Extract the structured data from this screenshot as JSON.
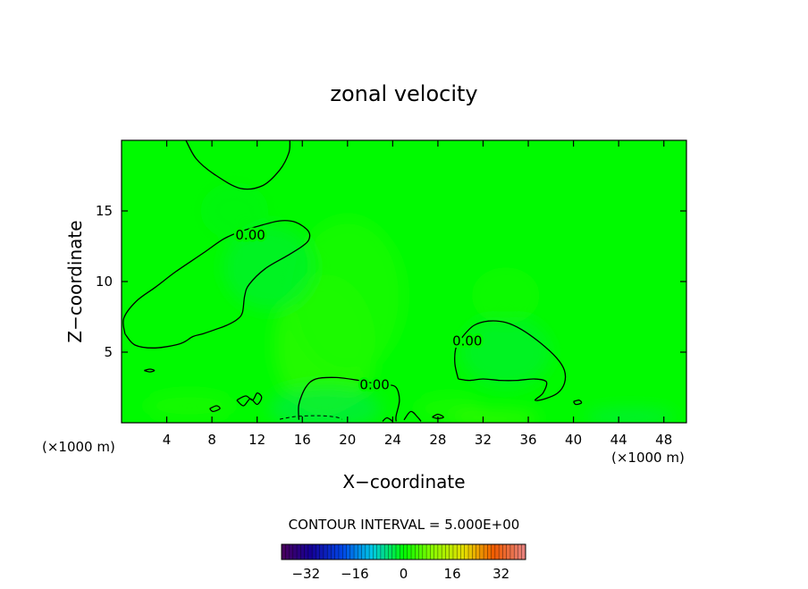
{
  "chart_data": {
    "type": "heatmap",
    "title": "zonal velocity",
    "xlabel": "X−coordinate",
    "ylabel": "Z−coordinate",
    "x_unit_left": "(×1000 m)",
    "x_unit_right": "(×1000 m)",
    "xlim": [
      0,
      50
    ],
    "ylim": [
      0,
      20
    ],
    "xticks": [
      4,
      8,
      12,
      16,
      20,
      24,
      28,
      32,
      36,
      40,
      44,
      48
    ],
    "yticks": [
      5,
      10,
      15
    ],
    "contour_interval_text": "CONTOUR INTERVAL = 5.000E+00",
    "contour_label": "0.00",
    "colorbar": {
      "range": [
        -40,
        40
      ],
      "ticks": [
        "−32",
        "−16",
        "0",
        "16",
        "32"
      ],
      "tick_values": [
        -32,
        -16,
        0,
        16,
        32
      ]
    },
    "background_value": 0,
    "zero_contours": [
      {
        "label_shown": false,
        "points": [
          [
            5.7,
            20
          ],
          [
            6.6,
            18.7
          ],
          [
            8.2,
            17.6
          ],
          [
            10.5,
            16.6
          ],
          [
            12.5,
            16.8
          ],
          [
            14.0,
            17.9
          ],
          [
            14.8,
            19.1
          ],
          [
            14.9,
            20
          ]
        ]
      },
      {
        "label_shown": true,
        "label_at": [
          11.4,
          13.3
        ],
        "points": [
          [
            0.3,
            6.3
          ],
          [
            1.2,
            5.5
          ],
          [
            3.0,
            5.3
          ],
          [
            5.2,
            5.6
          ],
          [
            6.3,
            6.1
          ],
          [
            7.2,
            6.3
          ],
          [
            8.3,
            6.6
          ],
          [
            9.3,
            6.9
          ],
          [
            10.2,
            7.3
          ],
          [
            10.7,
            7.8
          ],
          [
            10.9,
            9.0
          ],
          [
            11.3,
            9.8
          ],
          [
            12.7,
            10.9
          ],
          [
            14.6,
            11.8
          ],
          [
            16.0,
            12.5
          ],
          [
            16.6,
            13.0
          ],
          [
            16.5,
            13.6
          ],
          [
            15.4,
            14.2
          ],
          [
            14.0,
            14.3
          ],
          [
            12.0,
            13.9
          ],
          [
            10.4,
            13.5
          ],
          [
            9.0,
            13.0
          ],
          [
            7.2,
            12.0
          ],
          [
            4.8,
            10.7
          ],
          [
            3.0,
            9.6
          ],
          [
            1.3,
            8.6
          ],
          [
            0.2,
            7.4
          ],
          [
            0.3,
            6.3
          ]
        ]
      },
      {
        "label_shown": true,
        "label_at": [
          30.6,
          5.8
        ],
        "points": [
          [
            29.8,
            3.1
          ],
          [
            29.5,
            4.2
          ],
          [
            29.6,
            5.3
          ],
          [
            30.2,
            6.1
          ],
          [
            31.2,
            6.9
          ],
          [
            32.5,
            7.2
          ],
          [
            34.0,
            7.1
          ],
          [
            35.4,
            6.6
          ],
          [
            37.0,
            5.7
          ],
          [
            38.5,
            4.6
          ],
          [
            39.2,
            3.7
          ],
          [
            39.2,
            2.8
          ],
          [
            38.6,
            2.1
          ],
          [
            37.5,
            1.7
          ],
          [
            36.6,
            1.6
          ],
          [
            37.3,
            2.1
          ],
          [
            37.6,
            2.9
          ],
          [
            36.5,
            3.1
          ],
          [
            35.0,
            3.0
          ],
          [
            33.5,
            3.0
          ],
          [
            32.0,
            3.1
          ],
          [
            30.8,
            3.0
          ],
          [
            29.8,
            3.1
          ]
        ]
      },
      {
        "label_shown": true,
        "label_at": [
          22.4,
          2.7
        ],
        "points": [
          [
            15.7,
            0.2
          ],
          [
            15.7,
            1.3
          ],
          [
            16.3,
            2.5
          ],
          [
            17.2,
            3.1
          ],
          [
            19.0,
            3.2
          ],
          [
            21.0,
            3.0
          ],
          [
            22.3,
            2.8
          ],
          [
            23.5,
            2.7
          ],
          [
            24.3,
            2.5
          ],
          [
            24.6,
            1.6
          ],
          [
            24.3,
            0.5
          ],
          [
            24.3,
            0.1
          ]
        ]
      },
      {
        "label_shown": false,
        "points": [
          [
            23.1,
            0.1
          ],
          [
            23.5,
            0.35
          ],
          [
            24.0,
            0.1
          ]
        ]
      },
      {
        "label_shown": false,
        "points": [
          [
            25.0,
            0.2
          ],
          [
            25.6,
            0.8
          ],
          [
            26.2,
            0.4
          ],
          [
            26.5,
            0.1
          ]
        ]
      },
      {
        "label_shown": false,
        "points": [
          [
            10.2,
            1.6
          ],
          [
            10.8,
            1.2
          ],
          [
            11.4,
            1.7
          ],
          [
            12.0,
            1.3
          ],
          [
            12.4,
            1.8
          ],
          [
            12.0,
            2.1
          ],
          [
            11.6,
            1.6
          ],
          [
            11.0,
            1.9
          ],
          [
            10.2,
            1.6
          ]
        ]
      },
      {
        "label_shown": false,
        "points": [
          [
            7.8,
            1.0
          ],
          [
            8.4,
            1.2
          ],
          [
            8.7,
            1.0
          ],
          [
            8.1,
            0.8
          ],
          [
            7.8,
            1.0
          ]
        ]
      },
      {
        "label_shown": false,
        "points": [
          [
            2.0,
            3.7
          ],
          [
            2.5,
            3.8
          ],
          [
            2.9,
            3.7
          ],
          [
            2.5,
            3.6
          ],
          [
            2.0,
            3.7
          ]
        ]
      },
      {
        "label_shown": false,
        "points": [
          [
            40.0,
            1.5
          ],
          [
            40.5,
            1.6
          ],
          [
            40.7,
            1.4
          ],
          [
            40.2,
            1.3
          ],
          [
            40.0,
            1.5
          ]
        ]
      },
      {
        "label_shown": false,
        "points": [
          [
            27.5,
            0.4
          ],
          [
            28.0,
            0.6
          ],
          [
            28.5,
            0.4
          ],
          [
            28.0,
            0.3
          ],
          [
            27.5,
            0.4
          ]
        ]
      }
    ],
    "negative_contours": [
      {
        "style": "dashed",
        "points": [
          [
            14.0,
            0.25
          ],
          [
            15.5,
            0.45
          ],
          [
            17.5,
            0.5
          ],
          [
            19.0,
            0.4
          ],
          [
            19.5,
            0.25
          ]
        ]
      }
    ],
    "anomalies": [
      {
        "x": 18,
        "y": 5.5,
        "rx": 4.5,
        "ry": 5,
        "value": 3
      },
      {
        "x": 20,
        "y": 9,
        "rx": 5,
        "ry": 5.5,
        "value": 2
      },
      {
        "x": 13,
        "y": 11,
        "rx": 4,
        "ry": 3,
        "value": -2
      },
      {
        "x": 34,
        "y": 5,
        "rx": 4,
        "ry": 2.5,
        "value": -2
      },
      {
        "x": 34,
        "y": 9,
        "rx": 3,
        "ry": 2,
        "value": 1
      },
      {
        "x": 18,
        "y": 1,
        "rx": 5,
        "ry": 1.5,
        "value": -3
      },
      {
        "x": 6,
        "y": 1.2,
        "rx": 4,
        "ry": 1,
        "value": 2
      },
      {
        "x": 29,
        "y": 1,
        "rx": 3,
        "ry": 1,
        "value": 2
      },
      {
        "x": 33,
        "y": 0.3,
        "rx": 4,
        "ry": 0.6,
        "value": 4
      },
      {
        "x": 45,
        "y": 0.4,
        "rx": 4,
        "ry": 0.6,
        "value": -3
      },
      {
        "x": 10,
        "y": 15,
        "rx": 3,
        "ry": 2,
        "value": -1
      }
    ]
  }
}
